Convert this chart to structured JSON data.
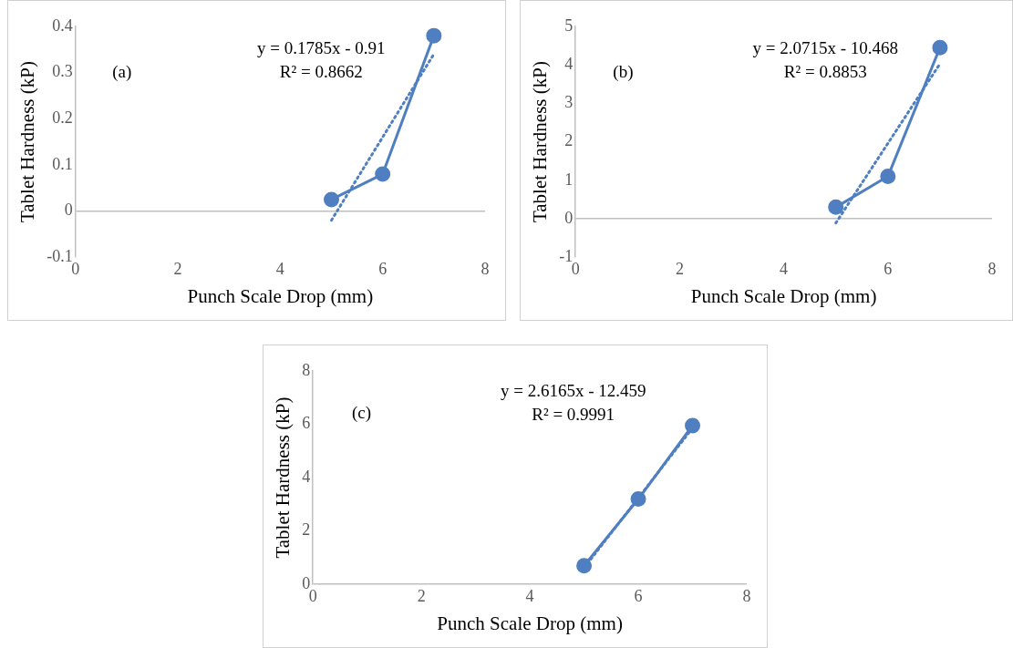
{
  "chart_data": [
    {
      "type": "line",
      "xlabel": "Punch Scale Drop (mm)",
      "ylabel": "Tablet Hardness (kP)",
      "xlim": [
        0,
        8
      ],
      "xticks": [
        0,
        2,
        4,
        6,
        8
      ],
      "ylim": [
        -0.1,
        0.4
      ],
      "yticks": [
        -0.1,
        0,
        0.1,
        0.2,
        0.3,
        0.4
      ],
      "marker": "circle",
      "line_style": "solid",
      "legend": false,
      "annotations": [
        "(a)",
        "y = 0.1785x - 0.91",
        "R² = 0.8662"
      ],
      "series": [
        {
          "color": "#4f7fc0",
          "x": [
            5,
            6,
            7
          ],
          "values": [
            0.025,
            0.08,
            0.38
          ]
        },
        {
          "type": "line",
          "color": "#4f7fc0",
          "marker": "none",
          "line_style": "dotted",
          "x": [
            5,
            7
          ],
          "values": [
            -0.02,
            0.34
          ]
        }
      ]
    },
    {
      "type": "line",
      "xlabel": "Punch Scale Drop (mm)",
      "ylabel": "Tablet Hardness (kP)",
      "xlim": [
        0,
        8
      ],
      "xticks": [
        0,
        2,
        4,
        6,
        8
      ],
      "ylim": [
        -1,
        5
      ],
      "yticks": [
        -1,
        0,
        1,
        2,
        3,
        4,
        5
      ],
      "marker": "circle",
      "line_style": "solid",
      "legend": false,
      "annotations": [
        "(b)",
        "y = 2.0715x - 10.468",
        "R² = 0.8853"
      ],
      "series": [
        {
          "color": "#4f7fc0",
          "x": [
            5,
            6,
            7
          ],
          "values": [
            0.3,
            1.1,
            4.45
          ]
        },
        {
          "type": "line",
          "color": "#4f7fc0",
          "marker": "none",
          "line_style": "dotted",
          "x": [
            5,
            7
          ],
          "values": [
            -0.11,
            4.03
          ]
        }
      ]
    },
    {
      "type": "line",
      "xlabel": "Punch Scale Drop (mm)",
      "ylabel": "Tablet Hardness (kP)",
      "xlim": [
        0,
        8
      ],
      "xticks": [
        0,
        2,
        4,
        6,
        8
      ],
      "ylim": [
        0,
        8
      ],
      "yticks": [
        0,
        2,
        4,
        6,
        8
      ],
      "marker": "circle",
      "line_style": "solid",
      "legend": false,
      "annotations": [
        "(c)",
        "y = 2.6165x - 12.459",
        "R² = 0.9991"
      ],
      "series": [
        {
          "color": "#4f7fc0",
          "x": [
            5,
            6,
            7
          ],
          "values": [
            0.7,
            3.2,
            5.95
          ]
        },
        {
          "type": "line",
          "color": "#4f7fc0",
          "marker": "none",
          "line_style": "dotted",
          "x": [
            5,
            7
          ],
          "values": [
            0.62,
            5.86
          ]
        }
      ]
    }
  ]
}
